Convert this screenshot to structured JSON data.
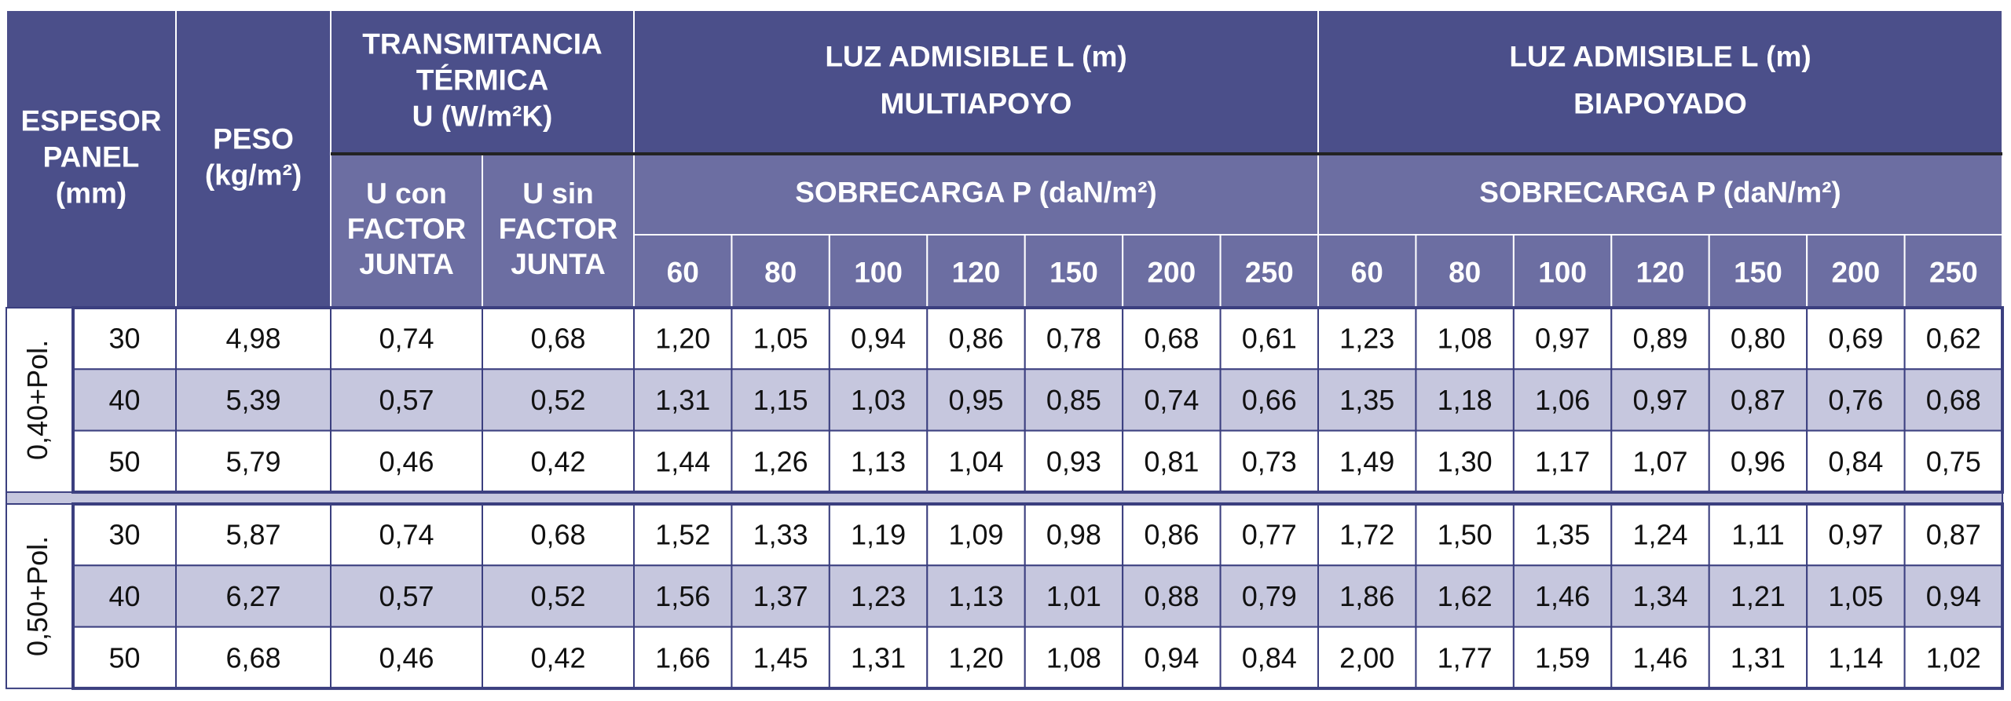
{
  "header": {
    "espesor": [
      "ESPESOR",
      "PANEL",
      "(mm)"
    ],
    "peso": [
      "PESO",
      "(kg/m²)"
    ],
    "transmitancia": [
      "TRANSMITANCIA",
      "TÉRMICA",
      "U (W/m²K)"
    ],
    "u_con": [
      "U con",
      "FACTOR",
      "JUNTA"
    ],
    "u_sin": [
      "U sin",
      "FACTOR",
      "JUNTA"
    ],
    "multiapoyo": [
      "LUZ ADMISIBLE L (m)",
      "MULTIAPOYO"
    ],
    "biapoyado": [
      "LUZ ADMISIBLE L (m)",
      "BIAPOYADO"
    ],
    "sobrecarga_multi": "SOBRECARGA P (daN/m²)",
    "sobrecarga_bi": "SOBRECARGA P (daN/m²)",
    "loads_multi": [
      "60",
      "80",
      "100",
      "120",
      "150",
      "200",
      "250"
    ],
    "loads_bi": [
      "60",
      "80",
      "100",
      "120",
      "150",
      "200",
      "250"
    ]
  },
  "groups": [
    {
      "label": "0,40+Pol.",
      "rows": [
        {
          "espesor": "30",
          "peso": "4,98",
          "u_con": "0,74",
          "u_sin": "0,68",
          "multi": [
            "1,20",
            "1,05",
            "0,94",
            "0,86",
            "0,78",
            "0,68",
            "0,61"
          ],
          "bi": [
            "1,23",
            "1,08",
            "0,97",
            "0,89",
            "0,80",
            "0,69",
            "0,62"
          ]
        },
        {
          "espesor": "40",
          "peso": "5,39",
          "u_con": "0,57",
          "u_sin": "0,52",
          "multi": [
            "1,31",
            "1,15",
            "1,03",
            "0,95",
            "0,85",
            "0,74",
            "0,66"
          ],
          "bi": [
            "1,35",
            "1,18",
            "1,06",
            "0,97",
            "0,87",
            "0,76",
            "0,68"
          ]
        },
        {
          "espesor": "50",
          "peso": "5,79",
          "u_con": "0,46",
          "u_sin": "0,42",
          "multi": [
            "1,44",
            "1,26",
            "1,13",
            "1,04",
            "0,93",
            "0,81",
            "0,73"
          ],
          "bi": [
            "1,49",
            "1,30",
            "1,17",
            "1,07",
            "0,96",
            "0,84",
            "0,75"
          ]
        }
      ]
    },
    {
      "label": "0,50+Pol.",
      "rows": [
        {
          "espesor": "30",
          "peso": "5,87",
          "u_con": "0,74",
          "u_sin": "0,68",
          "multi": [
            "1,52",
            "1,33",
            "1,19",
            "1,09",
            "0,98",
            "0,86",
            "0,77"
          ],
          "bi": [
            "1,72",
            "1,50",
            "1,35",
            "1,24",
            "1,11",
            "0,97",
            "0,87"
          ]
        },
        {
          "espesor": "40",
          "peso": "6,27",
          "u_con": "0,57",
          "u_sin": "0,52",
          "multi": [
            "1,56",
            "1,37",
            "1,23",
            "1,13",
            "1,01",
            "0,88",
            "0,79"
          ],
          "bi": [
            "1,86",
            "1,62",
            "1,46",
            "1,34",
            "1,21",
            "1,05",
            "0,94"
          ]
        },
        {
          "espesor": "50",
          "peso": "6,68",
          "u_con": "0,46",
          "u_sin": "0,42",
          "multi": [
            "1,66",
            "1,45",
            "1,31",
            "1,20",
            "1,08",
            "0,94",
            "0,84"
          ],
          "bi": [
            "2,00",
            "1,77",
            "1,59",
            "1,46",
            "1,31",
            "1,14",
            "1,02"
          ]
        }
      ]
    }
  ]
}
